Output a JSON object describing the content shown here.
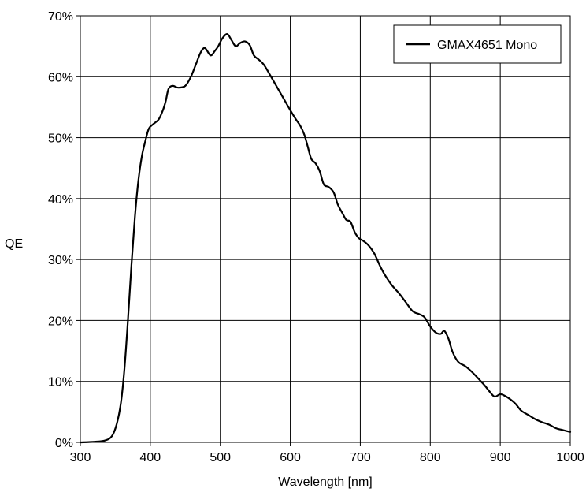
{
  "chart_data": {
    "type": "line",
    "xlabel": "Wavelength [nm]",
    "ylabel": "QE",
    "xlim": [
      300,
      1000
    ],
    "ylim": [
      0,
      70
    ],
    "x_ticks": [
      300,
      400,
      500,
      600,
      700,
      800,
      900,
      1000
    ],
    "x_tick_labels": [
      "300",
      "400",
      "500",
      "600",
      "700",
      "800",
      "900",
      "1000"
    ],
    "y_ticks": [
      0,
      10,
      20,
      30,
      40,
      50,
      60,
      70
    ],
    "y_tick_labels": [
      "0%",
      "10%",
      "20%",
      "30%",
      "40%",
      "50%",
      "60%",
      "70%"
    ],
    "grid": true,
    "legend_position": "top-right",
    "series": [
      {
        "name": "GMAX4651 Mono",
        "color": "#000000",
        "points": [
          [
            300,
            0
          ],
          [
            320,
            0.1
          ],
          [
            335,
            0.3
          ],
          [
            345,
            1.0
          ],
          [
            352,
            3.0
          ],
          [
            358,
            6.5
          ],
          [
            363,
            12
          ],
          [
            368,
            20
          ],
          [
            373,
            29
          ],
          [
            378,
            37
          ],
          [
            383,
            43
          ],
          [
            388,
            47
          ],
          [
            393,
            49.5
          ],
          [
            398,
            51.5
          ],
          [
            405,
            52.3
          ],
          [
            412,
            53
          ],
          [
            418,
            54.5
          ],
          [
            422,
            56
          ],
          [
            426,
            58
          ],
          [
            432,
            58.5
          ],
          [
            440,
            58.2
          ],
          [
            450,
            58.5
          ],
          [
            458,
            60
          ],
          [
            465,
            62
          ],
          [
            472,
            64
          ],
          [
            478,
            64.7
          ],
          [
            486,
            63.5
          ],
          [
            492,
            64.2
          ],
          [
            497,
            65
          ],
          [
            503,
            66.3
          ],
          [
            510,
            67
          ],
          [
            516,
            66
          ],
          [
            522,
            65
          ],
          [
            528,
            65.5
          ],
          [
            535,
            65.8
          ],
          [
            542,
            65.2
          ],
          [
            548,
            63.5
          ],
          [
            555,
            62.8
          ],
          [
            562,
            62
          ],
          [
            570,
            60.5
          ],
          [
            580,
            58.5
          ],
          [
            590,
            56.5
          ],
          [
            600,
            54.5
          ],
          [
            608,
            53
          ],
          [
            614,
            52
          ],
          [
            620,
            50.5
          ],
          [
            625,
            48.5
          ],
          [
            630,
            46.5
          ],
          [
            636,
            45.8
          ],
          [
            642,
            44.5
          ],
          [
            648,
            42.3
          ],
          [
            655,
            41.9
          ],
          [
            662,
            41
          ],
          [
            668,
            39
          ],
          [
            675,
            37.5
          ],
          [
            680,
            36.5
          ],
          [
            686,
            36.2
          ],
          [
            692,
            34.5
          ],
          [
            698,
            33.5
          ],
          [
            705,
            33
          ],
          [
            712,
            32.3
          ],
          [
            720,
            31
          ],
          [
            728,
            29
          ],
          [
            735,
            27.5
          ],
          [
            745,
            25.8
          ],
          [
            755,
            24.5
          ],
          [
            765,
            23
          ],
          [
            775,
            21.5
          ],
          [
            785,
            21
          ],
          [
            792,
            20.5
          ],
          [
            800,
            19
          ],
          [
            808,
            18
          ],
          [
            815,
            17.8
          ],
          [
            820,
            18.3
          ],
          [
            826,
            17
          ],
          [
            832,
            14.8
          ],
          [
            840,
            13.2
          ],
          [
            850,
            12.5
          ],
          [
            860,
            11.5
          ],
          [
            870,
            10.3
          ],
          [
            878,
            9.3
          ],
          [
            885,
            8.3
          ],
          [
            892,
            7.5
          ],
          [
            900,
            7.9
          ],
          [
            907,
            7.6
          ],
          [
            915,
            7
          ],
          [
            922,
            6.3
          ],
          [
            930,
            5.2
          ],
          [
            940,
            4.5
          ],
          [
            950,
            3.8
          ],
          [
            960,
            3.3
          ],
          [
            970,
            2.9
          ],
          [
            980,
            2.3
          ],
          [
            990,
            2.0
          ],
          [
            1000,
            1.7
          ]
        ]
      }
    ]
  }
}
